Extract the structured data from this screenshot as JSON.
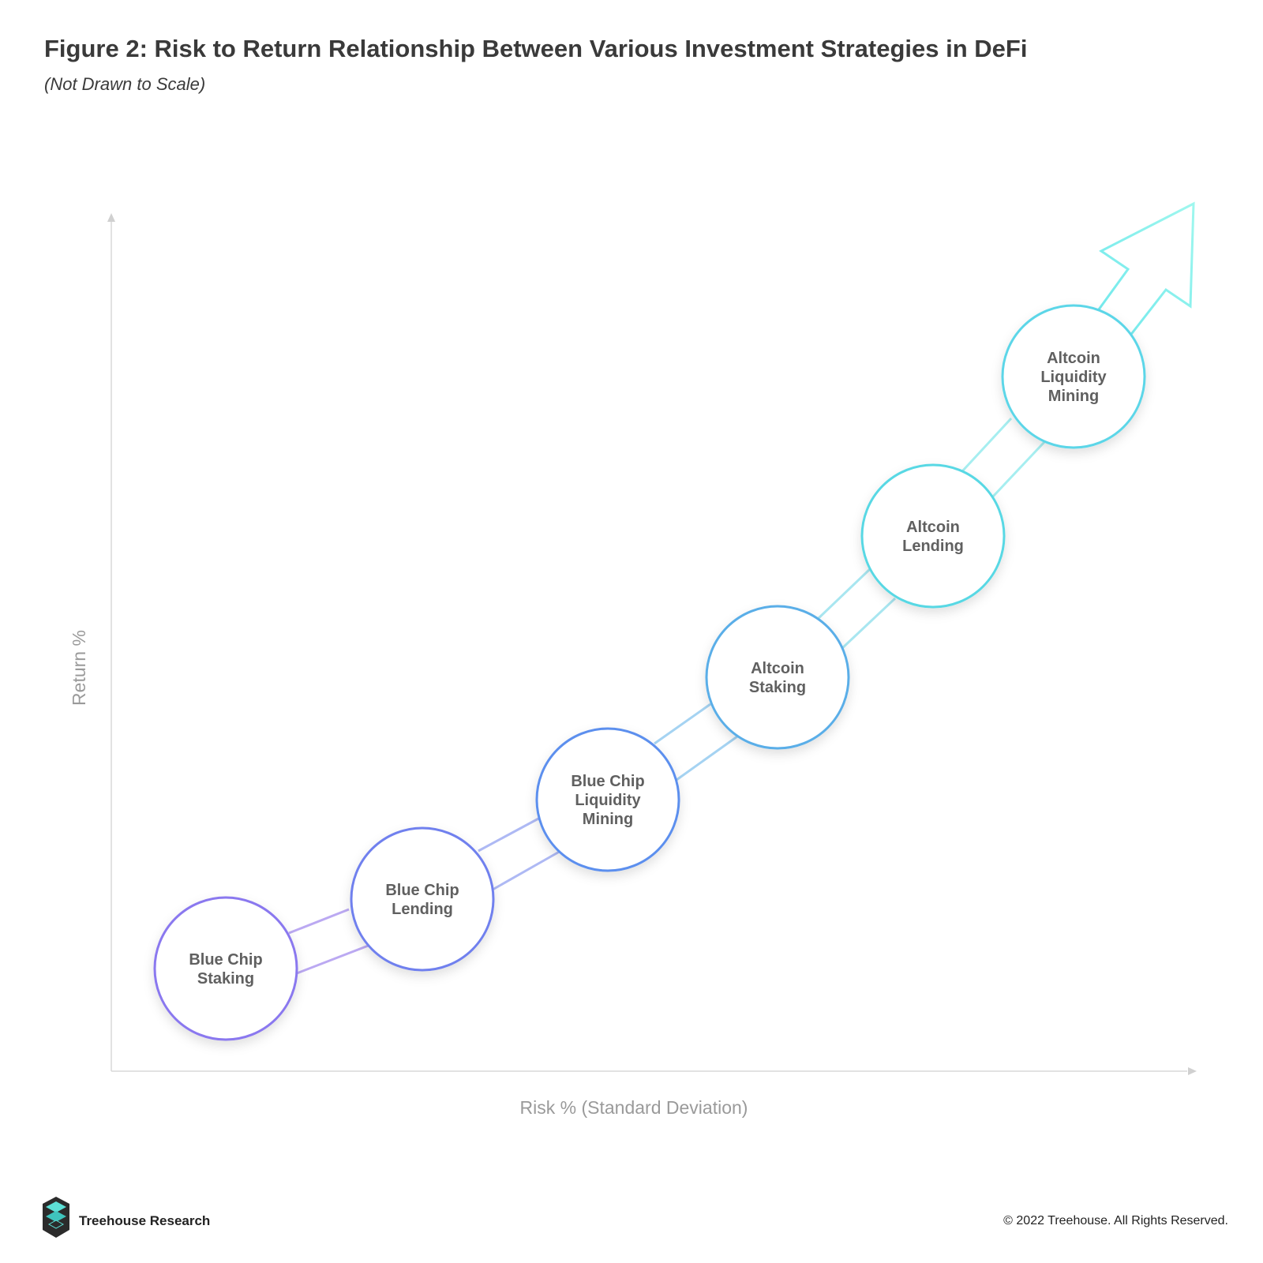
{
  "figure": {
    "title": "Figure 2: Risk to Return Relationship Between Various Investment Strategies in DeFi",
    "subtitle": "(Not Drawn to Scale)"
  },
  "axes": {
    "x_label": "Risk % (Standard Deviation)",
    "y_label": "Return %"
  },
  "nodes": [
    {
      "lines": [
        "Blue Chip",
        "Staking"
      ],
      "color": "#8a78ef"
    },
    {
      "lines": [
        "Blue Chip",
        "Lending"
      ],
      "color": "#6f80ee"
    },
    {
      "lines": [
        "Blue Chip",
        "Liquidity",
        "Mining"
      ],
      "color": "#5c8fee"
    },
    {
      "lines": [
        "Altcoin",
        "Staking"
      ],
      "color": "#5aaee8"
    },
    {
      "lines": [
        "Altcoin",
        "Lending"
      ],
      "color": "#58d8e4"
    },
    {
      "lines": [
        "Altcoin",
        "Liquidity",
        "Mining"
      ],
      "color": "#5cd6e8"
    }
  ],
  "arrow_color": "#8ff5ec",
  "footer": {
    "brand": "Treehouse Research",
    "copyright": "© 2022 Treehouse. All Rights Reserved."
  }
}
